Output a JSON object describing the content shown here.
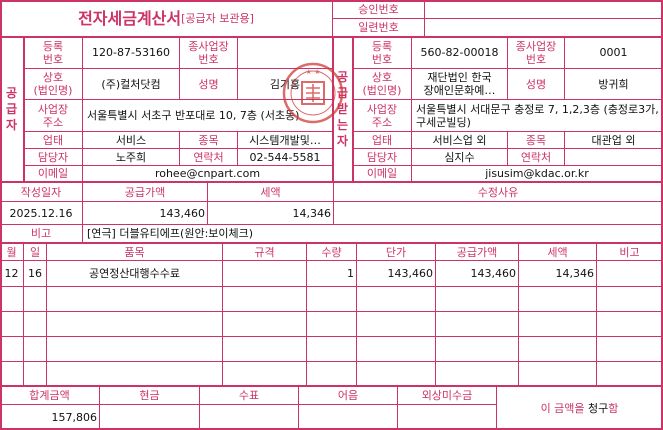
{
  "title": {
    "main": "전자세금계산서",
    "sub": "[공급자 보관용]"
  },
  "approval": {
    "approval_no_label": "승인번호",
    "approval_no": "",
    "serial_no_label": "일련번호",
    "serial_no": ""
  },
  "supplier": {
    "section_label": [
      "공",
      "급",
      "자"
    ],
    "reg_no_label": "등록\n번호",
    "reg_no": "120-87-53160",
    "sub_biz_label": "종사업장\n번호",
    "sub_biz_no": "",
    "company_label": "상호\n(법인명)",
    "company": "(주)컬처닷컴",
    "name_label": "성명",
    "name": "김기홍",
    "address_label": "사업장\n주소",
    "address": "서울특별시 서초구 반포대로 10, 7층 (서초동)",
    "biz_type_label": "업태",
    "biz_type": "서비스",
    "biz_item_label": "종목",
    "biz_item": "시스템개발및…",
    "contact_label": "담당자",
    "contact": "노주희",
    "phone_label": "연락처",
    "phone": "02-544-5581",
    "email_label": "이메일",
    "email": "rohee@cnpart.com"
  },
  "receiver": {
    "section_label": [
      "공",
      "급",
      "받",
      "는",
      "자"
    ],
    "reg_no_label": "등록\n번호",
    "reg_no": "560-82-00018",
    "sub_biz_label": "종사업장\n번호",
    "sub_biz_no": "0001",
    "company_label": "상호\n(법인명)",
    "company": "재단법인 한국\n장애인문화예…",
    "name_label": "성명",
    "name": "방귀희",
    "address_label": "사업장\n주소",
    "address": "서울특별시 서대문구 충정로 7, 1,2,3층 (충정로3가, 구세군빌딩)",
    "biz_type_label": "업태",
    "biz_type": "서비스업 외",
    "biz_item_label": "종목",
    "biz_item": "대관업 외",
    "contact_label": "담당자",
    "contact": "심지수",
    "phone_label": "연락처",
    "phone": "",
    "email_label": "이메일",
    "email": "jisusim@kdac.or.kr"
  },
  "summary": {
    "date_label": "작성일자",
    "date": "2025.12.16",
    "supply_label": "공급가액",
    "supply": "143,460",
    "tax_label": "세액",
    "tax": "14,346",
    "reason_label": "수정사유",
    "reason": "",
    "note_label": "비고",
    "note": "[연극] 더블유티에프(원안:보이체크)"
  },
  "items": {
    "headers": [
      "월",
      "일",
      "품목",
      "규격",
      "수량",
      "단가",
      "공급가액",
      "세액",
      "비고"
    ],
    "rows": [
      [
        "12",
        "16",
        "공연정산대행수수료",
        "",
        "1",
        "143,460",
        "143,460",
        "14,346",
        ""
      ],
      [
        "",
        "",
        "",
        "",
        "",
        "",
        "",
        "",
        ""
      ],
      [
        "",
        "",
        "",
        "",
        "",
        "",
        "",
        "",
        ""
      ],
      [
        "",
        "",
        "",
        "",
        "",
        "",
        "",
        "",
        ""
      ],
      [
        "",
        "",
        "",
        "",
        "",
        "",
        "",
        "",
        ""
      ]
    ]
  },
  "totals": {
    "headers": [
      "합계금액",
      "현금",
      "수표",
      "어음",
      "외상미수금"
    ],
    "values": [
      "157,806",
      "",
      "",
      "",
      ""
    ],
    "claim_prefix": "이 금액을 ",
    "claim_mid": "청구",
    "claim_suffix": "함"
  },
  "stamp": {
    "text": "주식회사 컬처닷컴",
    "color": "#d23a3a"
  },
  "colors": {
    "border": "#cc3366",
    "label": "#cc3366"
  }
}
